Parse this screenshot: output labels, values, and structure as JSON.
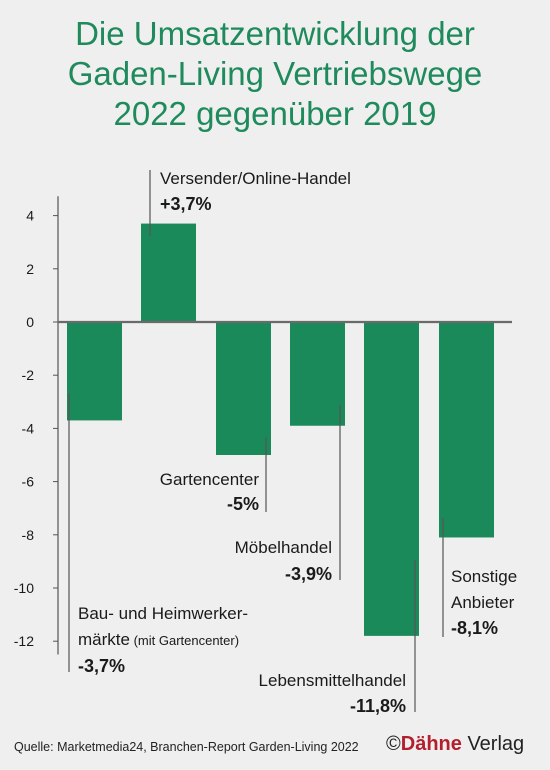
{
  "title_lines": [
    "Die Umsatzentwicklung der",
    "Gaden-Living Vertriebswege",
    "2022 gegenüber 2019"
  ],
  "source": "Quelle: Marketmedia24, Branchen-Report Garden-Living 2022",
  "logo": {
    "symbol": "©",
    "brand": "Dähne",
    "suffix": "Verlag"
  },
  "colors": {
    "bar": "#1b8a5a",
    "title": "#1f8a5c",
    "accent": "#b21f2d"
  },
  "chart_data": {
    "type": "bar",
    "categories": [
      "Bau- und Heimwerkermärkte (mit Gartencenter)",
      "Versender/Online-Handel",
      "Gartencenter",
      "Möbelhandel",
      "Lebensmittelhandel",
      "Sonstige Anbieter"
    ],
    "values": [
      -3.7,
      3.7,
      -5,
      -3.9,
      -11.8,
      -8.1
    ],
    "ylim": [
      -12.5,
      4.5
    ],
    "yticks": [
      "4",
      "2",
      "0",
      "-2",
      "-4",
      "-6",
      "-8",
      "-10",
      "-12"
    ],
    "ytick_values": [
      4,
      2,
      0,
      -2,
      -4,
      -6,
      -8,
      -10,
      -12
    ],
    "annotations": [
      {
        "lines": [
          "Bau- und Heimwerker-",
          "märkte"
        ],
        "suffix": "(mit Gartencenter)",
        "value_label": "-3,7%"
      },
      {
        "lines": [
          "Versender/Online-Handel"
        ],
        "value_label": "+3,7%"
      },
      {
        "lines": [
          "Gartencenter"
        ],
        "value_label": "-5%"
      },
      {
        "lines": [
          "Möbelhandel"
        ],
        "value_label": "-3,9%"
      },
      {
        "lines": [
          "Lebensmittelhandel"
        ],
        "value_label": "-11,8%"
      },
      {
        "lines": [
          "Sonstige",
          "Anbieter"
        ],
        "value_label": "-8,1%"
      }
    ]
  }
}
